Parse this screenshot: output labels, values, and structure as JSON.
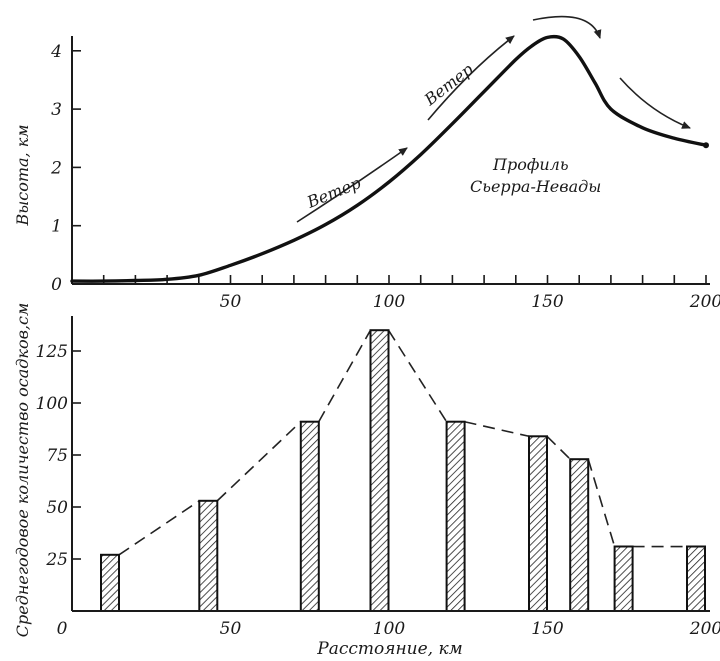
{
  "chart_data": [
    {
      "type": "line",
      "title": "",
      "xlabel": "",
      "ylabel": "Высота, км",
      "xlim": [
        0,
        200
      ],
      "ylim": [
        0,
        4.3
      ],
      "x_tick_labels": [
        "50",
        "100",
        "150",
        "200"
      ],
      "x_tick_values": [
        50,
        100,
        150,
        200
      ],
      "y_tick_labels": [
        "0",
        "1",
        "2",
        "3",
        "4"
      ],
      "y_tick_values": [
        0,
        1,
        2,
        3,
        4
      ],
      "series": [
        {
          "x": [
            0,
            10,
            20,
            30,
            40,
            50,
            60,
            70,
            80,
            90,
            100,
            110,
            120,
            130,
            140,
            145,
            150,
            155,
            160,
            165,
            170,
            180,
            190,
            200
          ],
          "y": [
            0.05,
            0.05,
            0.06,
            0.08,
            0.15,
            0.32,
            0.52,
            0.75,
            1.02,
            1.35,
            1.75,
            2.22,
            2.75,
            3.3,
            3.85,
            4.08,
            4.23,
            4.2,
            3.9,
            3.45,
            3.0,
            2.68,
            2.5,
            2.38
          ]
        }
      ],
      "annotations": {
        "wind_1": "Ветер",
        "wind_2": "Ветер",
        "profile_label_line1": "Профиль",
        "profile_label_line2": "Сьерра-Невады"
      }
    },
    {
      "type": "bar",
      "title": "",
      "xlabel": "Расстояние, км",
      "ylabel": "Среднегодовое количество осадков,см",
      "xlim": [
        0,
        200
      ],
      "ylim": [
        0,
        140
      ],
      "x_tick_labels": [
        "0",
        "50",
        "100",
        "150",
        "200"
      ],
      "x_tick_values": [
        0,
        50,
        100,
        150,
        200
      ],
      "y_tick_labels": [
        "25",
        "50",
        "75",
        "100",
        "125"
      ],
      "y_tick_values": [
        25,
        50,
        75,
        100,
        125
      ],
      "x": [
        12,
        43,
        75,
        97,
        121,
        147,
        160,
        174,
        200
      ],
      "values": [
        27,
        53,
        91,
        135,
        91,
        84,
        73,
        31,
        31
      ],
      "connector": "dashed"
    }
  ]
}
